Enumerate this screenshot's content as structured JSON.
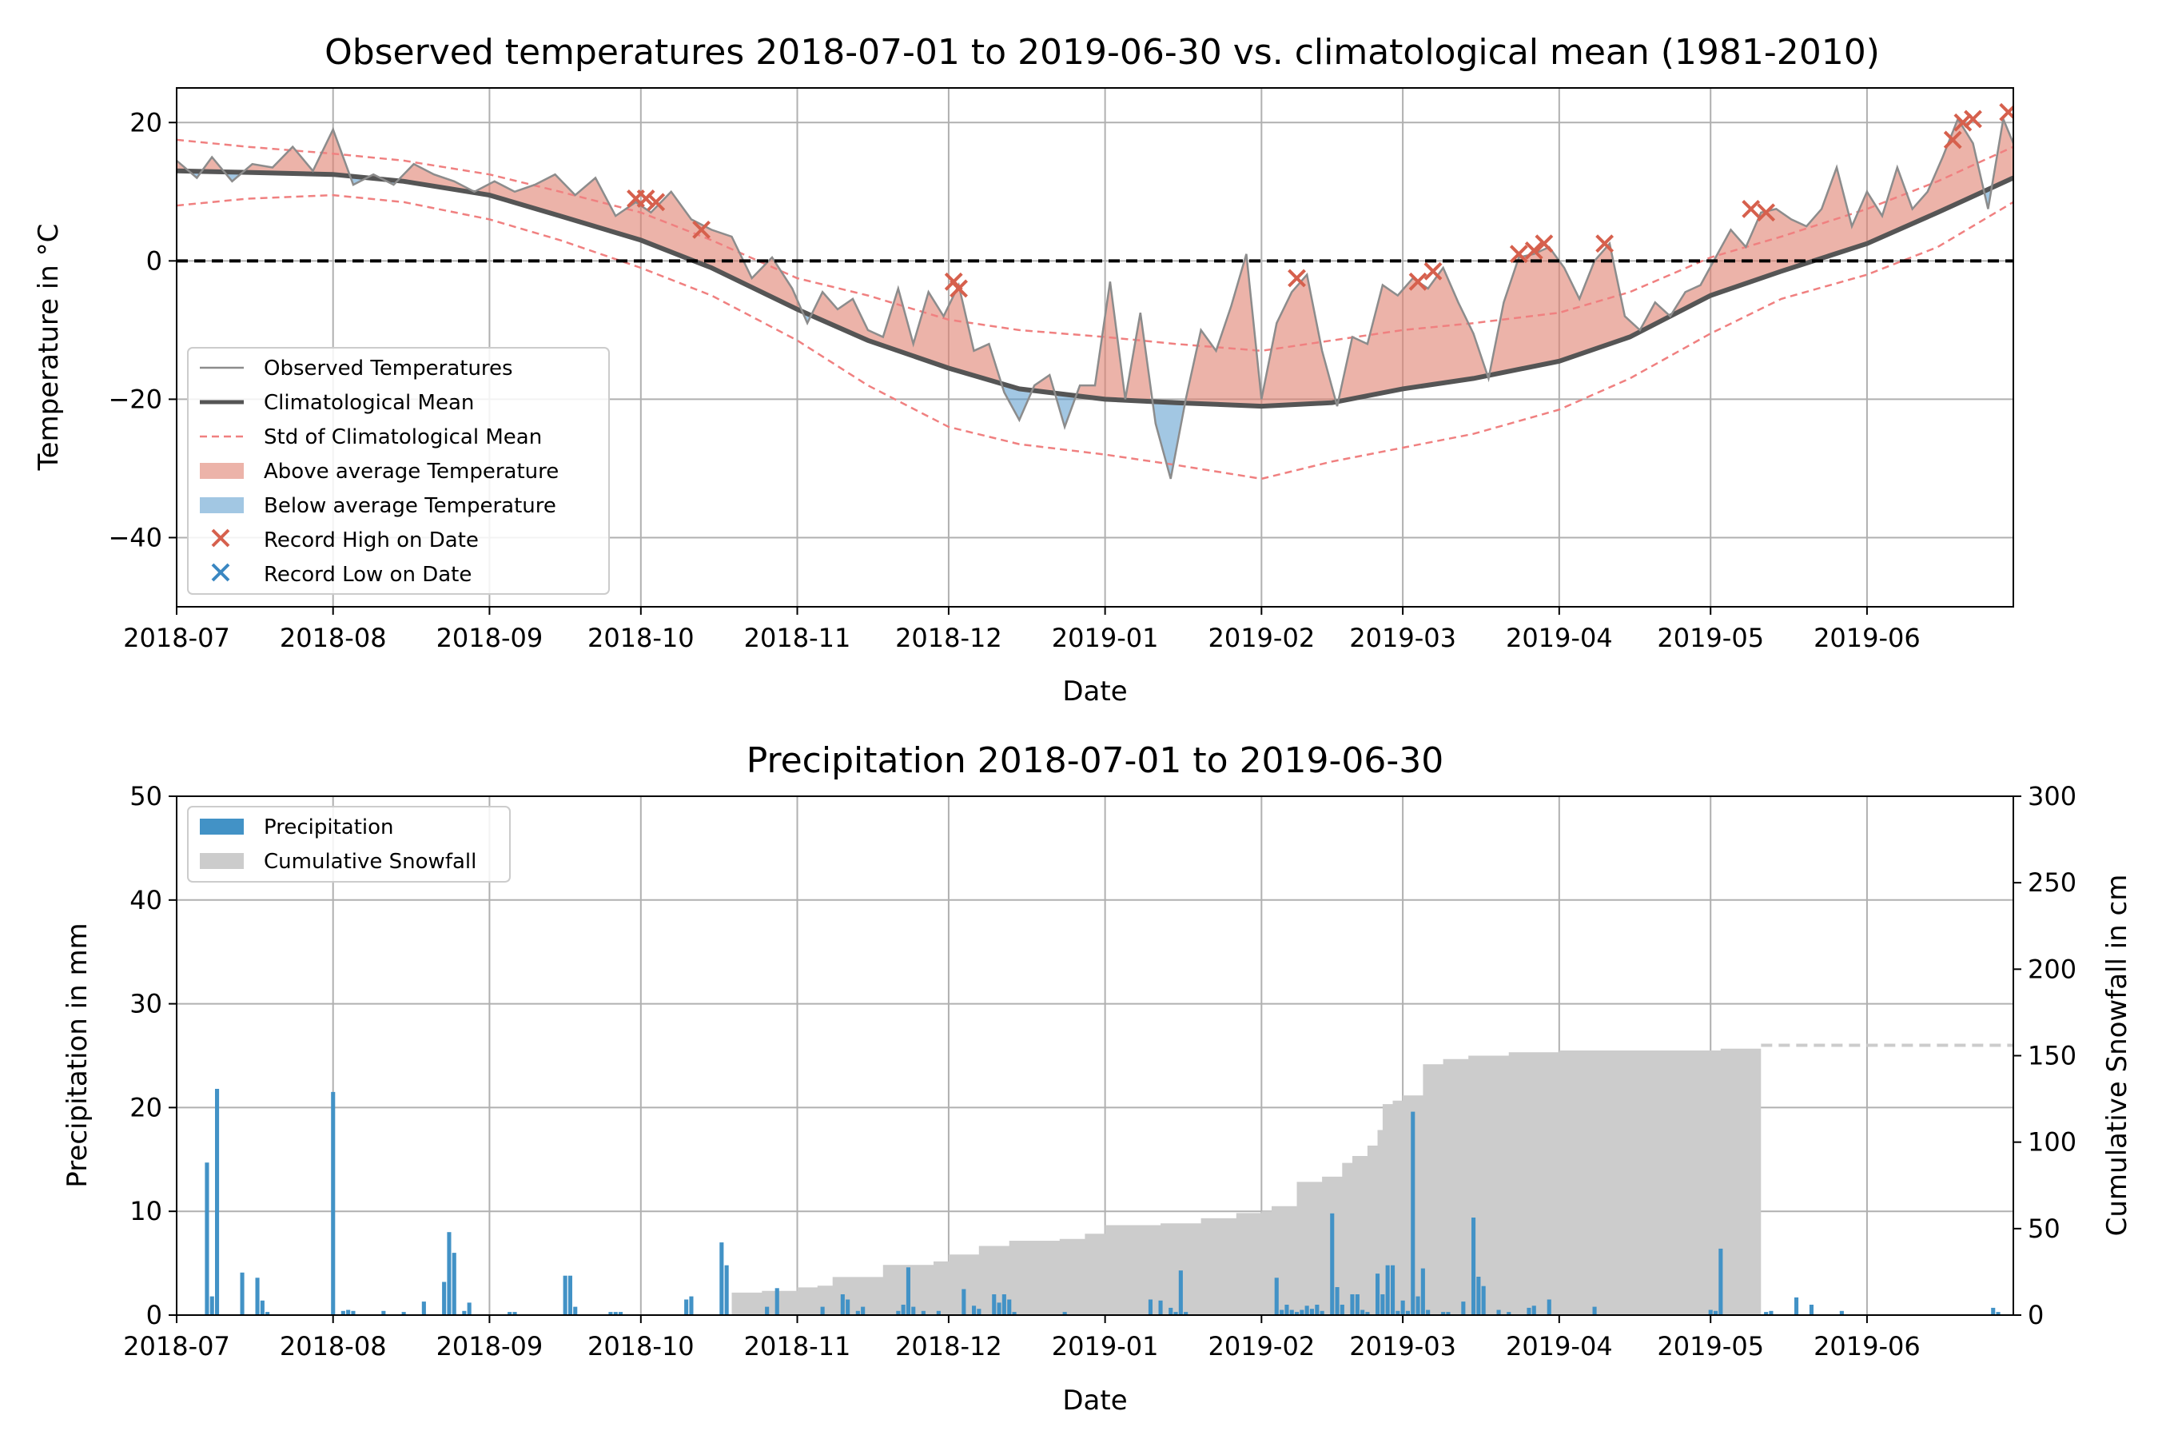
{
  "chart_data": [
    {
      "type": "line",
      "title": "Observed temperatures 2018-07-01 to 2019-06-30 vs. climatological mean (1981-2010)",
      "xlabel": "Date",
      "ylabel": "Temperature in °C",
      "ylim": [
        -50,
        25
      ],
      "yticks": [
        20,
        0,
        -20,
        -40
      ],
      "ytick_labels": [
        "20",
        "0",
        "−20",
        "−40"
      ],
      "xlim": [
        "2018-07-01",
        "2019-06-30"
      ],
      "xtick_labels": [
        "2018-07",
        "2018-08",
        "2018-09",
        "2018-10",
        "2018-11",
        "2018-12",
        "2019-01",
        "2019-02",
        "2019-03",
        "2019-04",
        "2019-05",
        "2019-06"
      ],
      "grid": true,
      "legend_position": "center-left",
      "colors": {
        "observed": "#8c8c8c",
        "climatological_mean": "#555555",
        "std": "#f08080",
        "above": "#e08070",
        "below": "#5599cc",
        "record_high": "#d6604d",
        "record_low": "#3a87c2",
        "zero_line": "#000000"
      },
      "legend": [
        {
          "label": "Observed Temperatures",
          "kind": "line-thin"
        },
        {
          "label": "Climatological Mean",
          "kind": "line-thick"
        },
        {
          "label": "Std of Climatological Mean",
          "kind": "line-dashed"
        },
        {
          "label": "Above average Temperature",
          "kind": "patch-above"
        },
        {
          "label": "Below average Temperature",
          "kind": "patch-below"
        },
        {
          "label": "Record High on Date",
          "kind": "x-high"
        },
        {
          "label": "Record Low on Date",
          "kind": "x-low"
        }
      ],
      "climatological_mean": {
        "x": [
          "2018-07-01",
          "2018-07-15",
          "2018-08-01",
          "2018-08-15",
          "2018-09-01",
          "2018-09-15",
          "2018-10-01",
          "2018-10-15",
          "2018-11-01",
          "2018-11-15",
          "2018-12-01",
          "2018-12-15",
          "2019-01-01",
          "2019-01-15",
          "2019-02-01",
          "2019-02-15",
          "2019-03-01",
          "2019-03-15",
          "2019-04-01",
          "2019-04-15",
          "2019-05-01",
          "2019-05-15",
          "2019-06-01",
          "2019-06-15",
          "2019-06-30"
        ],
        "y": [
          13.0,
          12.8,
          12.5,
          11.5,
          9.5,
          6.5,
          3.0,
          -1.0,
          -7.0,
          -11.5,
          -15.5,
          -18.5,
          -20.0,
          -20.5,
          -21.0,
          -20.5,
          -18.5,
          -17.0,
          -14.5,
          -11.0,
          -5.0,
          -1.5,
          2.5,
          7.0,
          12.0
        ]
      },
      "std_upper": {
        "x": [
          "2018-07-01",
          "2018-07-15",
          "2018-08-01",
          "2018-08-15",
          "2018-09-01",
          "2018-09-15",
          "2018-10-01",
          "2018-10-15",
          "2018-11-01",
          "2018-11-15",
          "2018-12-01",
          "2018-12-15",
          "2019-01-01",
          "2019-01-15",
          "2019-02-01",
          "2019-02-15",
          "2019-03-01",
          "2019-03-15",
          "2019-04-01",
          "2019-04-15",
          "2019-05-01",
          "2019-05-15",
          "2019-06-01",
          "2019-06-15",
          "2019-06-30"
        ],
        "y": [
          17.5,
          16.5,
          15.5,
          14.5,
          12.5,
          10.0,
          7.0,
          3.0,
          -2.5,
          -5.0,
          -8.5,
          -10.0,
          -11.0,
          -12.0,
          -13.0,
          -11.5,
          -10.0,
          -9.0,
          -7.5,
          -4.5,
          0.5,
          3.5,
          7.5,
          11.5,
          16.5
        ]
      },
      "std_lower": {
        "x": [
          "2018-07-01",
          "2018-07-15",
          "2018-08-01",
          "2018-08-15",
          "2018-09-01",
          "2018-09-15",
          "2018-10-01",
          "2018-10-15",
          "2018-11-01",
          "2018-11-15",
          "2018-12-01",
          "2018-12-15",
          "2019-01-01",
          "2019-01-15",
          "2019-02-01",
          "2019-02-15",
          "2019-03-01",
          "2019-03-15",
          "2019-04-01",
          "2019-04-15",
          "2019-05-01",
          "2019-05-15",
          "2019-06-01",
          "2019-06-15",
          "2019-06-30"
        ],
        "y": [
          8.0,
          9.0,
          9.5,
          8.5,
          6.0,
          3.0,
          -1.0,
          -5.0,
          -11.5,
          -18.0,
          -24.0,
          -26.5,
          -28.0,
          -29.5,
          -31.5,
          -29.0,
          -27.0,
          -25.0,
          -21.5,
          -17.0,
          -10.5,
          -5.5,
          -2.0,
          2.0,
          8.5
        ]
      },
      "observed": {
        "x": [
          "2018-07-01",
          "2018-07-05",
          "2018-07-08",
          "2018-07-12",
          "2018-07-16",
          "2018-07-20",
          "2018-07-24",
          "2018-07-28",
          "2018-08-01",
          "2018-08-05",
          "2018-08-09",
          "2018-08-13",
          "2018-08-17",
          "2018-08-21",
          "2018-08-25",
          "2018-08-29",
          "2018-09-02",
          "2018-09-06",
          "2018-09-10",
          "2018-09-14",
          "2018-09-18",
          "2018-09-22",
          "2018-09-26",
          "2018-09-30",
          "2018-10-03",
          "2018-10-07",
          "2018-10-11",
          "2018-10-15",
          "2018-10-19",
          "2018-10-23",
          "2018-10-27",
          "2018-10-31",
          "2018-11-03",
          "2018-11-06",
          "2018-11-09",
          "2018-11-12",
          "2018-11-15",
          "2018-11-18",
          "2018-11-21",
          "2018-11-24",
          "2018-11-27",
          "2018-11-30",
          "2018-12-03",
          "2018-12-06",
          "2018-12-09",
          "2018-12-12",
          "2018-12-15",
          "2018-12-18",
          "2018-12-21",
          "2018-12-24",
          "2018-12-27",
          "2018-12-30",
          "2019-01-02",
          "2019-01-05",
          "2019-01-08",
          "2019-01-11",
          "2019-01-14",
          "2019-01-17",
          "2019-01-20",
          "2019-01-23",
          "2019-01-26",
          "2019-01-29",
          "2019-02-01",
          "2019-02-04",
          "2019-02-07",
          "2019-02-10",
          "2019-02-13",
          "2019-02-16",
          "2019-02-19",
          "2019-02-22",
          "2019-02-25",
          "2019-02-28",
          "2019-03-03",
          "2019-03-06",
          "2019-03-09",
          "2019-03-12",
          "2019-03-15",
          "2019-03-18",
          "2019-03-21",
          "2019-03-24",
          "2019-03-27",
          "2019-03-30",
          "2019-04-02",
          "2019-04-05",
          "2019-04-08",
          "2019-04-11",
          "2019-04-14",
          "2019-04-17",
          "2019-04-20",
          "2019-04-23",
          "2019-04-26",
          "2019-04-29",
          "2019-05-02",
          "2019-05-05",
          "2019-05-08",
          "2019-05-11",
          "2019-05-14",
          "2019-05-17",
          "2019-05-20",
          "2019-05-23",
          "2019-05-26",
          "2019-05-29",
          "2019-06-01",
          "2019-06-04",
          "2019-06-07",
          "2019-06-10",
          "2019-06-13",
          "2019-06-16",
          "2019-06-19",
          "2019-06-22",
          "2019-06-25",
          "2019-06-28",
          "2019-06-30"
        ],
        "y": [
          14.5,
          12.0,
          15.0,
          11.5,
          14.0,
          13.5,
          16.5,
          13.0,
          19.0,
          11.0,
          12.5,
          11.0,
          14.0,
          12.5,
          11.5,
          10.0,
          11.5,
          10.0,
          11.0,
          12.5,
          9.5,
          12.0,
          6.5,
          8.5,
          7.0,
          10.0,
          6.0,
          4.5,
          3.5,
          -2.5,
          0.5,
          -4.0,
          -9.0,
          -4.5,
          -7.0,
          -5.5,
          -10.0,
          -11.0,
          -4.0,
          -12.0,
          -4.5,
          -8.0,
          -3.5,
          -13.0,
          -12.0,
          -19.0,
          -23.0,
          -18.0,
          -16.5,
          -24.0,
          -18.0,
          -18.0,
          -3.0,
          -20.0,
          -7.5,
          -23.5,
          -31.5,
          -20.0,
          -10.0,
          -13.0,
          -6.5,
          1.0,
          -20.0,
          -9.0,
          -4.5,
          -2.0,
          -13.0,
          -21.0,
          -11.0,
          -12.0,
          -3.5,
          -5.0,
          -2.5,
          -4.0,
          -1.0,
          -6.0,
          -10.5,
          -17.0,
          -6.0,
          0.5,
          1.0,
          2.0,
          -1.0,
          -5.5,
          0.0,
          2.5,
          -8.0,
          -10.0,
          -6.0,
          -8.0,
          -4.5,
          -3.5,
          0.5,
          4.5,
          2.0,
          7.0,
          7.5,
          6.0,
          5.0,
          7.5,
          13.5,
          5.0,
          10.0,
          6.5,
          13.5,
          7.5,
          10.0,
          15.0,
          20.5,
          17.0,
          7.5,
          20.5,
          17.0
        ]
      },
      "record_high": {
        "x": [
          "2018-09-30",
          "2018-10-02",
          "2018-10-04",
          "2018-10-13",
          "2018-12-02",
          "2018-12-03",
          "2019-02-08",
          "2019-03-04",
          "2019-03-07",
          "2019-03-24",
          "2019-03-27",
          "2019-03-29",
          "2019-04-10",
          "2019-05-09",
          "2019-05-12",
          "2019-06-18",
          "2019-06-20",
          "2019-06-22",
          "2019-06-29"
        ],
        "y": [
          9.0,
          9.0,
          8.5,
          4.5,
          -3.0,
          -4.0,
          -2.5,
          -3.0,
          -1.5,
          1.0,
          1.5,
          2.5,
          2.5,
          7.5,
          7.0,
          17.5,
          20.0,
          20.5,
          21.5
        ]
      },
      "record_low": {
        "x": [],
        "y": []
      }
    },
    {
      "type": "bar",
      "title": "Precipitation 2018-07-01 to 2019-06-30",
      "xlabel": "Date",
      "ylabel": "Precipitation in mm",
      "y2label": "Cumulative Snowfall in cm",
      "ylim": [
        0,
        50
      ],
      "yticks": [
        0,
        10,
        20,
        30,
        40,
        50
      ],
      "y2lim": [
        0,
        300
      ],
      "y2ticks": [
        0,
        50,
        100,
        150,
        200,
        250,
        300
      ],
      "xlim": [
        "2018-07-01",
        "2019-06-30"
      ],
      "xtick_labels": [
        "2018-07",
        "2018-08",
        "2018-09",
        "2018-10",
        "2018-11",
        "2018-12",
        "2019-01",
        "2019-02",
        "2019-03",
        "2019-04",
        "2019-05",
        "2019-06"
      ],
      "grid": true,
      "legend_position": "top-left",
      "colors": {
        "precipitation": "#4292c6",
        "snowfall": "#cccccc",
        "snowfall_projection": "#cccccc"
      },
      "legend": [
        {
          "label": "Precipitation",
          "kind": "patch-precip"
        },
        {
          "label": "Cumulative Snowfall",
          "kind": "patch-snow"
        }
      ],
      "precipitation": {
        "x": [
          "2018-07-07",
          "2018-07-08",
          "2018-07-09",
          "2018-07-14",
          "2018-07-17",
          "2018-07-18",
          "2018-07-19",
          "2018-08-01",
          "2018-08-03",
          "2018-08-04",
          "2018-08-05",
          "2018-08-11",
          "2018-08-15",
          "2018-08-19",
          "2018-08-23",
          "2018-08-24",
          "2018-08-25",
          "2018-08-27",
          "2018-08-28",
          "2018-09-05",
          "2018-09-06",
          "2018-09-16",
          "2018-09-17",
          "2018-09-18",
          "2018-09-25",
          "2018-09-26",
          "2018-09-27",
          "2018-10-10",
          "2018-10-11",
          "2018-10-17",
          "2018-10-18",
          "2018-10-26",
          "2018-10-28",
          "2018-11-06",
          "2018-11-10",
          "2018-11-11",
          "2018-11-13",
          "2018-11-14",
          "2018-11-21",
          "2018-11-22",
          "2018-11-23",
          "2018-11-24",
          "2018-11-26",
          "2018-11-29",
          "2018-12-04",
          "2018-12-06",
          "2018-12-07",
          "2018-12-10",
          "2018-12-11",
          "2018-12-12",
          "2018-12-13",
          "2018-12-14",
          "2018-12-24",
          "2019-01-10",
          "2019-01-12",
          "2019-01-14",
          "2019-01-15",
          "2019-01-16",
          "2019-01-17",
          "2019-02-04",
          "2019-02-05",
          "2019-02-06",
          "2019-02-07",
          "2019-02-08",
          "2019-02-09",
          "2019-02-10",
          "2019-02-11",
          "2019-02-12",
          "2019-02-13",
          "2019-02-15",
          "2019-02-16",
          "2019-02-17",
          "2019-02-19",
          "2019-02-20",
          "2019-02-21",
          "2019-02-22",
          "2019-02-24",
          "2019-02-25",
          "2019-02-26",
          "2019-02-27",
          "2019-02-28",
          "2019-03-01",
          "2019-03-02",
          "2019-03-03",
          "2019-03-04",
          "2019-03-05",
          "2019-03-06",
          "2019-03-09",
          "2019-03-10",
          "2019-03-13",
          "2019-03-15",
          "2019-03-16",
          "2019-03-17",
          "2019-03-20",
          "2019-03-22",
          "2019-03-26",
          "2019-03-27",
          "2019-03-30",
          "2019-04-08",
          "2019-05-01",
          "2019-05-02",
          "2019-05-03",
          "2019-05-12",
          "2019-05-13",
          "2019-05-18",
          "2019-05-21",
          "2019-05-27",
          "2019-06-26",
          "2019-06-27"
        ],
        "y": [
          14.7,
          1.8,
          21.8,
          4.1,
          3.6,
          1.4,
          0.3,
          21.5,
          0.4,
          0.5,
          0.4,
          0.4,
          0.3,
          1.3,
          3.2,
          8.0,
          6.0,
          0.4,
          1.2,
          0.3,
          0.3,
          3.8,
          3.8,
          0.8,
          0.3,
          0.3,
          0.3,
          1.5,
          1.8,
          7.0,
          4.8,
          0.8,
          2.6,
          0.8,
          2.0,
          1.5,
          0.4,
          0.8,
          0.4,
          1.0,
          4.6,
          0.8,
          0.4,
          0.4,
          2.5,
          0.9,
          0.6,
          2.0,
          1.2,
          2.0,
          1.5,
          0.3,
          0.3,
          1.5,
          1.4,
          0.7,
          0.3,
          4.3,
          0.3,
          3.6,
          0.5,
          1.0,
          0.5,
          0.3,
          0.5,
          0.9,
          0.6,
          1.0,
          0.4,
          9.8,
          2.7,
          1.0,
          2.0,
          2.0,
          0.5,
          0.3,
          4.0,
          2.0,
          4.8,
          4.8,
          0.4,
          1.4,
          0.4,
          19.6,
          1.8,
          4.5,
          0.5,
          0.3,
          0.3,
          1.3,
          9.4,
          3.7,
          2.8,
          0.5,
          0.3,
          0.7,
          0.9,
          1.5,
          0.8,
          0.5,
          0.4,
          6.4,
          0.3,
          0.4,
          1.7,
          1.0,
          0.4,
          0.7,
          0.3
        ]
      },
      "cumulative_snowfall": {
        "x": [
          "2018-10-18",
          "2018-10-19",
          "2018-10-25",
          "2018-11-01",
          "2018-11-05",
          "2018-11-08",
          "2018-11-18",
          "2018-11-28",
          "2018-12-01",
          "2018-12-07",
          "2018-12-13",
          "2018-12-23",
          "2018-12-28",
          "2019-01-01",
          "2019-01-12",
          "2019-01-20",
          "2019-01-27",
          "2019-02-01",
          "2019-02-03",
          "2019-02-08",
          "2019-02-13",
          "2019-02-17",
          "2019-02-19",
          "2019-02-22",
          "2019-02-24",
          "2019-02-25",
          "2019-02-27",
          "2019-03-01",
          "2019-03-05",
          "2019-03-09",
          "2019-03-14",
          "2019-03-22",
          "2019-04-01",
          "2019-04-15",
          "2019-05-01",
          "2019-05-03",
          "2019-05-11"
        ],
        "y": [
          0,
          13,
          14,
          16,
          17,
          22,
          29,
          31,
          35,
          40,
          43,
          44,
          47,
          52,
          53,
          56,
          59,
          60,
          63,
          77,
          80,
          88,
          92,
          98,
          107,
          122,
          124,
          127,
          145,
          148,
          150,
          152,
          153,
          153,
          153,
          154,
          155
        ]
      },
      "snowfall_projection": {
        "x": [
          "2019-05-11",
          "2019-06-30"
        ],
        "y": [
          156,
          156
        ]
      }
    }
  ]
}
